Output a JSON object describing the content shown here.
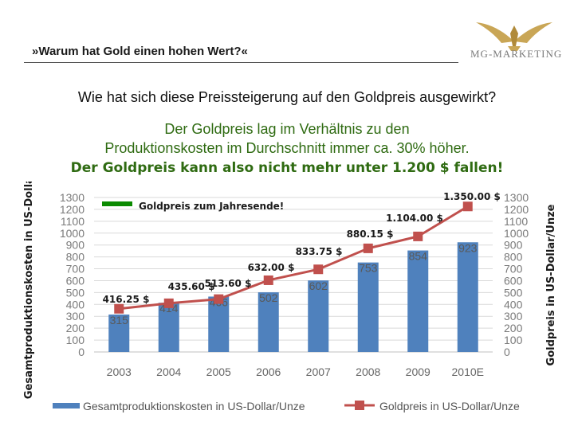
{
  "header": {
    "title": "»Warum hat Gold einen hohen Wert?«",
    "logo_text": "MG-MARKETING"
  },
  "text": {
    "question": "Wie hat sich diese Preissteigerung auf den Goldpreis ausgewirkt?",
    "line1": "Der Goldpreis lag im Verhältnis zu den",
    "line2": "Produktionskosten im Durchschnitt immer ca. 30% höher.",
    "line3": "Der Goldpreis kann also nicht mehr unter 1.200 $ fallen!"
  },
  "colors": {
    "bar": "#4f81bd",
    "line": "#c0504d",
    "green_text": "#2f6b12",
    "legend_green": "#0a8a00"
  },
  "chart_data": {
    "type": "bar",
    "categories": [
      "2003",
      "2004",
      "2005",
      "2006",
      "2007",
      "2008",
      "2009",
      "2010E"
    ],
    "series": [
      {
        "name": "Gesamtproduktionskosten in US-Dollar/Unze",
        "type": "bar",
        "values": [
          315,
          414,
          466,
          502,
          602,
          753,
          854,
          923
        ],
        "labels": [
          "315",
          "414",
          "466",
          "502",
          "602",
          "753",
          "854",
          "923"
        ]
      },
      {
        "name": "Goldpreis in US-Dollar/Unze",
        "type": "line",
        "values": [
          363.38,
          409.72,
          444.74,
          603.46,
          695.39,
          871.96,
          972.35,
          1224.53
        ]
      }
    ],
    "price_annotations": [
      "416.25 $",
      "435.60 $",
      "513.60 $",
      "632.00 $",
      "833.75 $",
      "880.15 $",
      "1.104.00 $",
      "1.350.00 $"
    ],
    "overlay_legend": "Goldpreis zum Jahresende!",
    "ylabel_left": "Gesamtproduktionskosten in US-Dollar/Unze",
    "ylabel_right": "Goldpreis in US-Dollar/Unze",
    "ylim": [
      0,
      1300
    ],
    "yticks": [
      0,
      100,
      200,
      300,
      400,
      500,
      600,
      700,
      800,
      900,
      1000,
      1100,
      1200,
      1300
    ],
    "grid": true,
    "legend_position": "bottom"
  }
}
